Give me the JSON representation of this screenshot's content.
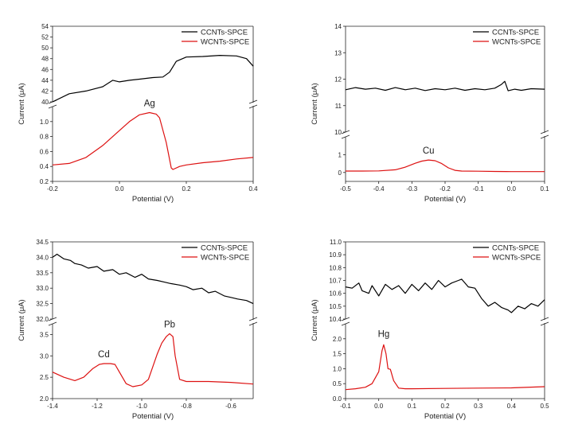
{
  "chart_data": [
    {
      "type": "line",
      "panel": "top-left",
      "xlabel": "Potential (V)",
      "ylabel": "Current (μA)",
      "x_ticks": [
        "-0.2",
        "0.0",
        "0.2",
        "0.4"
      ],
      "xlim": [
        -0.2,
        0.4
      ],
      "upper_axis": {
        "ylim": [
          40,
          54
        ],
        "ticks": [
          "40",
          "42",
          "44",
          "46",
          "48",
          "50",
          "52",
          "54"
        ]
      },
      "lower_axis": {
        "ylim": [
          0.2,
          1.2
        ],
        "ticks": [
          "0.2",
          "0.4",
          "0.6",
          "0.8",
          "1.0"
        ]
      },
      "broken_y_axis": true,
      "legend_position": "top-right",
      "peak_labels": [
        {
          "text": "Ag",
          "x": 0.09,
          "y": 1.12
        }
      ],
      "series": [
        {
          "name": "CCNTs-SPCE",
          "color": "#000000",
          "segment": "upper",
          "x": [
            -0.2,
            -0.15,
            -0.1,
            -0.05,
            -0.02,
            0.0,
            0.03,
            0.06,
            0.1,
            0.13,
            0.15,
            0.17,
            0.2,
            0.25,
            0.3,
            0.35,
            0.38,
            0.4
          ],
          "y": [
            40.0,
            41.5,
            42.0,
            42.8,
            44.0,
            43.7,
            44.0,
            44.2,
            44.5,
            44.6,
            45.5,
            47.5,
            48.3,
            48.4,
            48.6,
            48.5,
            48.0,
            46.6
          ]
        },
        {
          "name": "WCNTs-SPCE",
          "color": "#dd1111",
          "segment": "lower",
          "x": [
            -0.2,
            -0.15,
            -0.1,
            -0.05,
            0.0,
            0.03,
            0.06,
            0.09,
            0.11,
            0.12,
            0.14,
            0.155,
            0.16,
            0.18,
            0.2,
            0.25,
            0.3,
            0.35,
            0.4
          ],
          "y": [
            0.42,
            0.44,
            0.52,
            0.68,
            0.88,
            1.0,
            1.09,
            1.12,
            1.1,
            1.05,
            0.72,
            0.38,
            0.36,
            0.4,
            0.42,
            0.45,
            0.47,
            0.5,
            0.52
          ]
        }
      ]
    },
    {
      "type": "line",
      "panel": "top-right",
      "xlabel": "Potential (V)",
      "ylabel": "Current (μA)",
      "x_ticks": [
        "-0.5",
        "-0.4",
        "-0.3",
        "-0.2",
        "-0.1",
        "0.0",
        "0.1"
      ],
      "xlim": [
        -0.5,
        0.1
      ],
      "upper_axis": {
        "ylim": [
          10,
          14
        ],
        "ticks": [
          "10",
          "11",
          "12",
          "13",
          "14"
        ]
      },
      "lower_axis": {
        "ylim": [
          -0.5,
          2
        ],
        "ticks": [
          "0",
          "1"
        ]
      },
      "broken_y_axis": true,
      "legend_position": "top-right",
      "peak_labels": [
        {
          "text": "Cu",
          "x": -0.25,
          "y": 0.7
        }
      ],
      "series": [
        {
          "name": "CCNTs-SPCE",
          "color": "#000000",
          "segment": "upper",
          "x": [
            -0.5,
            -0.47,
            -0.44,
            -0.41,
            -0.38,
            -0.35,
            -0.32,
            -0.29,
            -0.26,
            -0.23,
            -0.2,
            -0.17,
            -0.14,
            -0.11,
            -0.08,
            -0.05,
            -0.03,
            -0.02,
            -0.01,
            0.01,
            0.03,
            0.06,
            0.1
          ],
          "y": [
            11.6,
            11.68,
            11.62,
            11.66,
            11.58,
            11.68,
            11.6,
            11.66,
            11.57,
            11.64,
            11.6,
            11.66,
            11.58,
            11.64,
            11.6,
            11.66,
            11.8,
            11.92,
            11.56,
            11.62,
            11.58,
            11.64,
            11.62
          ]
        },
        {
          "name": "WCNTs-SPCE",
          "color": "#dd1111",
          "segment": "lower",
          "x": [
            -0.5,
            -0.45,
            -0.4,
            -0.35,
            -0.32,
            -0.29,
            -0.27,
            -0.25,
            -0.23,
            -0.21,
            -0.19,
            -0.17,
            -0.15,
            -0.1,
            -0.05,
            0.0,
            0.05,
            0.1
          ],
          "y": [
            0.08,
            0.08,
            0.09,
            0.15,
            0.3,
            0.52,
            0.64,
            0.7,
            0.66,
            0.5,
            0.26,
            0.12,
            0.08,
            0.07,
            0.06,
            0.05,
            0.05,
            0.05
          ]
        }
      ]
    },
    {
      "type": "line",
      "panel": "bottom-left",
      "xlabel": "Potential (V)",
      "ylabel": "Current (μA)",
      "x_ticks": [
        "-1.4",
        "-1.2",
        "-1.0",
        "-0.8",
        "-0.6"
      ],
      "xlim": [
        -1.4,
        -0.5
      ],
      "upper_axis": {
        "ylim": [
          32.0,
          34.5
        ],
        "ticks": [
          "32.0",
          "32.5",
          "33.0",
          "33.5",
          "34.0",
          "34.5"
        ]
      },
      "lower_axis": {
        "ylim": [
          2.0,
          3.75
        ],
        "ticks": [
          "2.0",
          "2.5",
          "3.0",
          "3.5"
        ]
      },
      "broken_y_axis": true,
      "legend_position": "top-right",
      "peak_labels": [
        {
          "text": "Cd",
          "x": -1.17,
          "y": 2.82
        },
        {
          "text": "Pb",
          "x": -0.875,
          "y": 3.52
        }
      ],
      "series": [
        {
          "name": "CCNTs-SPCE",
          "color": "#000000",
          "segment": "upper",
          "x": [
            -1.4,
            -1.38,
            -1.35,
            -1.32,
            -1.3,
            -1.27,
            -1.24,
            -1.2,
            -1.17,
            -1.13,
            -1.1,
            -1.07,
            -1.03,
            -1.0,
            -0.97,
            -0.93,
            -0.9,
            -0.87,
            -0.83,
            -0.8,
            -0.77,
            -0.73,
            -0.7,
            -0.67,
            -0.63,
            -0.6,
            -0.57,
            -0.53,
            -0.5
          ],
          "y": [
            34.0,
            34.1,
            33.95,
            33.9,
            33.8,
            33.75,
            33.65,
            33.7,
            33.55,
            33.6,
            33.45,
            33.5,
            33.35,
            33.45,
            33.3,
            33.25,
            33.2,
            33.15,
            33.1,
            33.05,
            32.95,
            33.0,
            32.85,
            32.9,
            32.75,
            32.7,
            32.65,
            32.6,
            32.5
          ]
        },
        {
          "name": "WCNTs-SPCE",
          "color": "#dd1111",
          "segment": "lower",
          "x": [
            -1.4,
            -1.35,
            -1.3,
            -1.26,
            -1.22,
            -1.19,
            -1.17,
            -1.14,
            -1.12,
            -1.1,
            -1.07,
            -1.04,
            -1.0,
            -0.97,
            -0.95,
            -0.93,
            -0.91,
            -0.89,
            -0.875,
            -0.86,
            -0.85,
            -0.83,
            -0.8,
            -0.7,
            -0.6,
            -0.5
          ],
          "y": [
            2.62,
            2.5,
            2.42,
            2.5,
            2.7,
            2.8,
            2.82,
            2.82,
            2.8,
            2.62,
            2.35,
            2.28,
            2.32,
            2.45,
            2.75,
            3.05,
            3.3,
            3.45,
            3.52,
            3.45,
            3.0,
            2.45,
            2.4,
            2.4,
            2.38,
            2.34
          ]
        }
      ]
    },
    {
      "type": "line",
      "panel": "bottom-right",
      "xlabel": "Potential (V)",
      "ylabel": "Current (μA)",
      "x_ticks": [
        "-0.1",
        "0.0",
        "0.1",
        "0.2",
        "0.3",
        "0.4",
        "0.5"
      ],
      "xlim": [
        -0.1,
        0.5
      ],
      "upper_axis": {
        "ylim": [
          10.4,
          11.0
        ],
        "ticks": [
          "10.4",
          "10.5",
          "10.6",
          "10.7",
          "10.8",
          "10.9",
          "11.0"
        ]
      },
      "lower_axis": {
        "ylim": [
          0.0,
          2.5
        ],
        "ticks": [
          "0.0",
          "0.5",
          "1.0",
          "1.5",
          "2.0"
        ]
      },
      "broken_y_axis": true,
      "legend_position": "top-right",
      "peak_labels": [
        {
          "text": "Hg",
          "x": 0.015,
          "y": 1.85
        }
      ],
      "series": [
        {
          "name": "CCNTs-SPCE",
          "color": "#000000",
          "segment": "upper",
          "x": [
            -0.1,
            -0.08,
            -0.06,
            -0.05,
            -0.03,
            -0.02,
            0.0,
            0.02,
            0.04,
            0.06,
            0.08,
            0.1,
            0.12,
            0.14,
            0.16,
            0.18,
            0.2,
            0.22,
            0.24,
            0.25,
            0.27,
            0.29,
            0.31,
            0.33,
            0.35,
            0.37,
            0.39,
            0.4,
            0.42,
            0.44,
            0.46,
            0.48,
            0.5
          ],
          "y": [
            10.65,
            10.64,
            10.68,
            10.62,
            10.6,
            10.66,
            10.58,
            10.67,
            10.63,
            10.66,
            10.6,
            10.67,
            10.62,
            10.68,
            10.63,
            10.7,
            10.65,
            10.68,
            10.7,
            10.71,
            10.65,
            10.64,
            10.56,
            10.5,
            10.53,
            10.49,
            10.47,
            10.45,
            10.5,
            10.48,
            10.52,
            10.5,
            10.55
          ]
        },
        {
          "name": "WCNTs-SPCE",
          "color": "#dd1111",
          "segment": "lower",
          "x": [
            -0.1,
            -0.07,
            -0.04,
            -0.02,
            0.0,
            0.01,
            0.015,
            0.022,
            0.028,
            0.035,
            0.045,
            0.06,
            0.08,
            0.1,
            0.2,
            0.3,
            0.4,
            0.5
          ],
          "y": [
            0.3,
            0.33,
            0.38,
            0.5,
            0.9,
            1.6,
            1.8,
            1.5,
            1.0,
            0.98,
            0.6,
            0.35,
            0.33,
            0.33,
            0.34,
            0.35,
            0.36,
            0.4
          ]
        }
      ]
    }
  ]
}
